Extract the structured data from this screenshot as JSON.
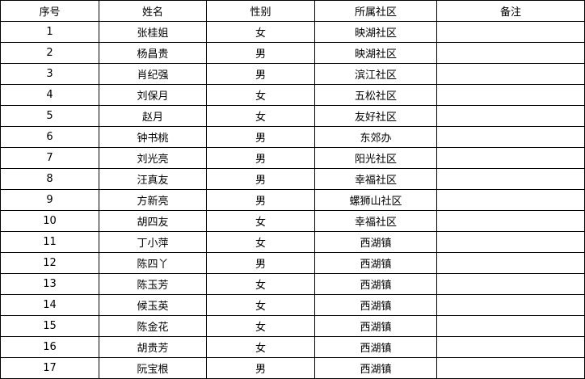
{
  "headers": [
    "序号",
    "姓名",
    "性别",
    "所属社区",
    "备注"
  ],
  "rows": [
    [
      "1",
      "张桂姐",
      "女",
      "映湖社区",
      ""
    ],
    [
      "2",
      "杨昌贵",
      "男",
      "映湖社区",
      ""
    ],
    [
      "3",
      "肖纪强",
      "男",
      "滨江社区",
      ""
    ],
    [
      "4",
      "刘保月",
      "女",
      "五松社区",
      ""
    ],
    [
      "5",
      "赵月",
      "女",
      "友好社区",
      ""
    ],
    [
      "6",
      "钟书桃",
      "男",
      "东郊办",
      ""
    ],
    [
      "7",
      "刘光亮",
      "男",
      "阳光社区",
      ""
    ],
    [
      "8",
      "汪真友",
      "男",
      "幸福社区",
      ""
    ],
    [
      "9",
      "方新亮",
      "男",
      "螺狮山社区",
      ""
    ],
    [
      "10",
      "胡四友",
      "女",
      "幸福社区",
      ""
    ],
    [
      "11",
      "丁小萍",
      "女",
      "西湖镇",
      ""
    ],
    [
      "12",
      "陈四丫",
      "男",
      "西湖镇",
      ""
    ],
    [
      "13",
      "陈玉芳",
      "女",
      "西湖镇",
      ""
    ],
    [
      "14",
      "候玉英",
      "女",
      "西湖镇",
      ""
    ],
    [
      "15",
      "陈金花",
      "女",
      "西湖镇",
      ""
    ],
    [
      "16",
      "胡贵芳",
      "女",
      "西湖镇",
      ""
    ],
    [
      "17",
      "阮宝根",
      "男",
      "西湖镇",
      ""
    ]
  ]
}
